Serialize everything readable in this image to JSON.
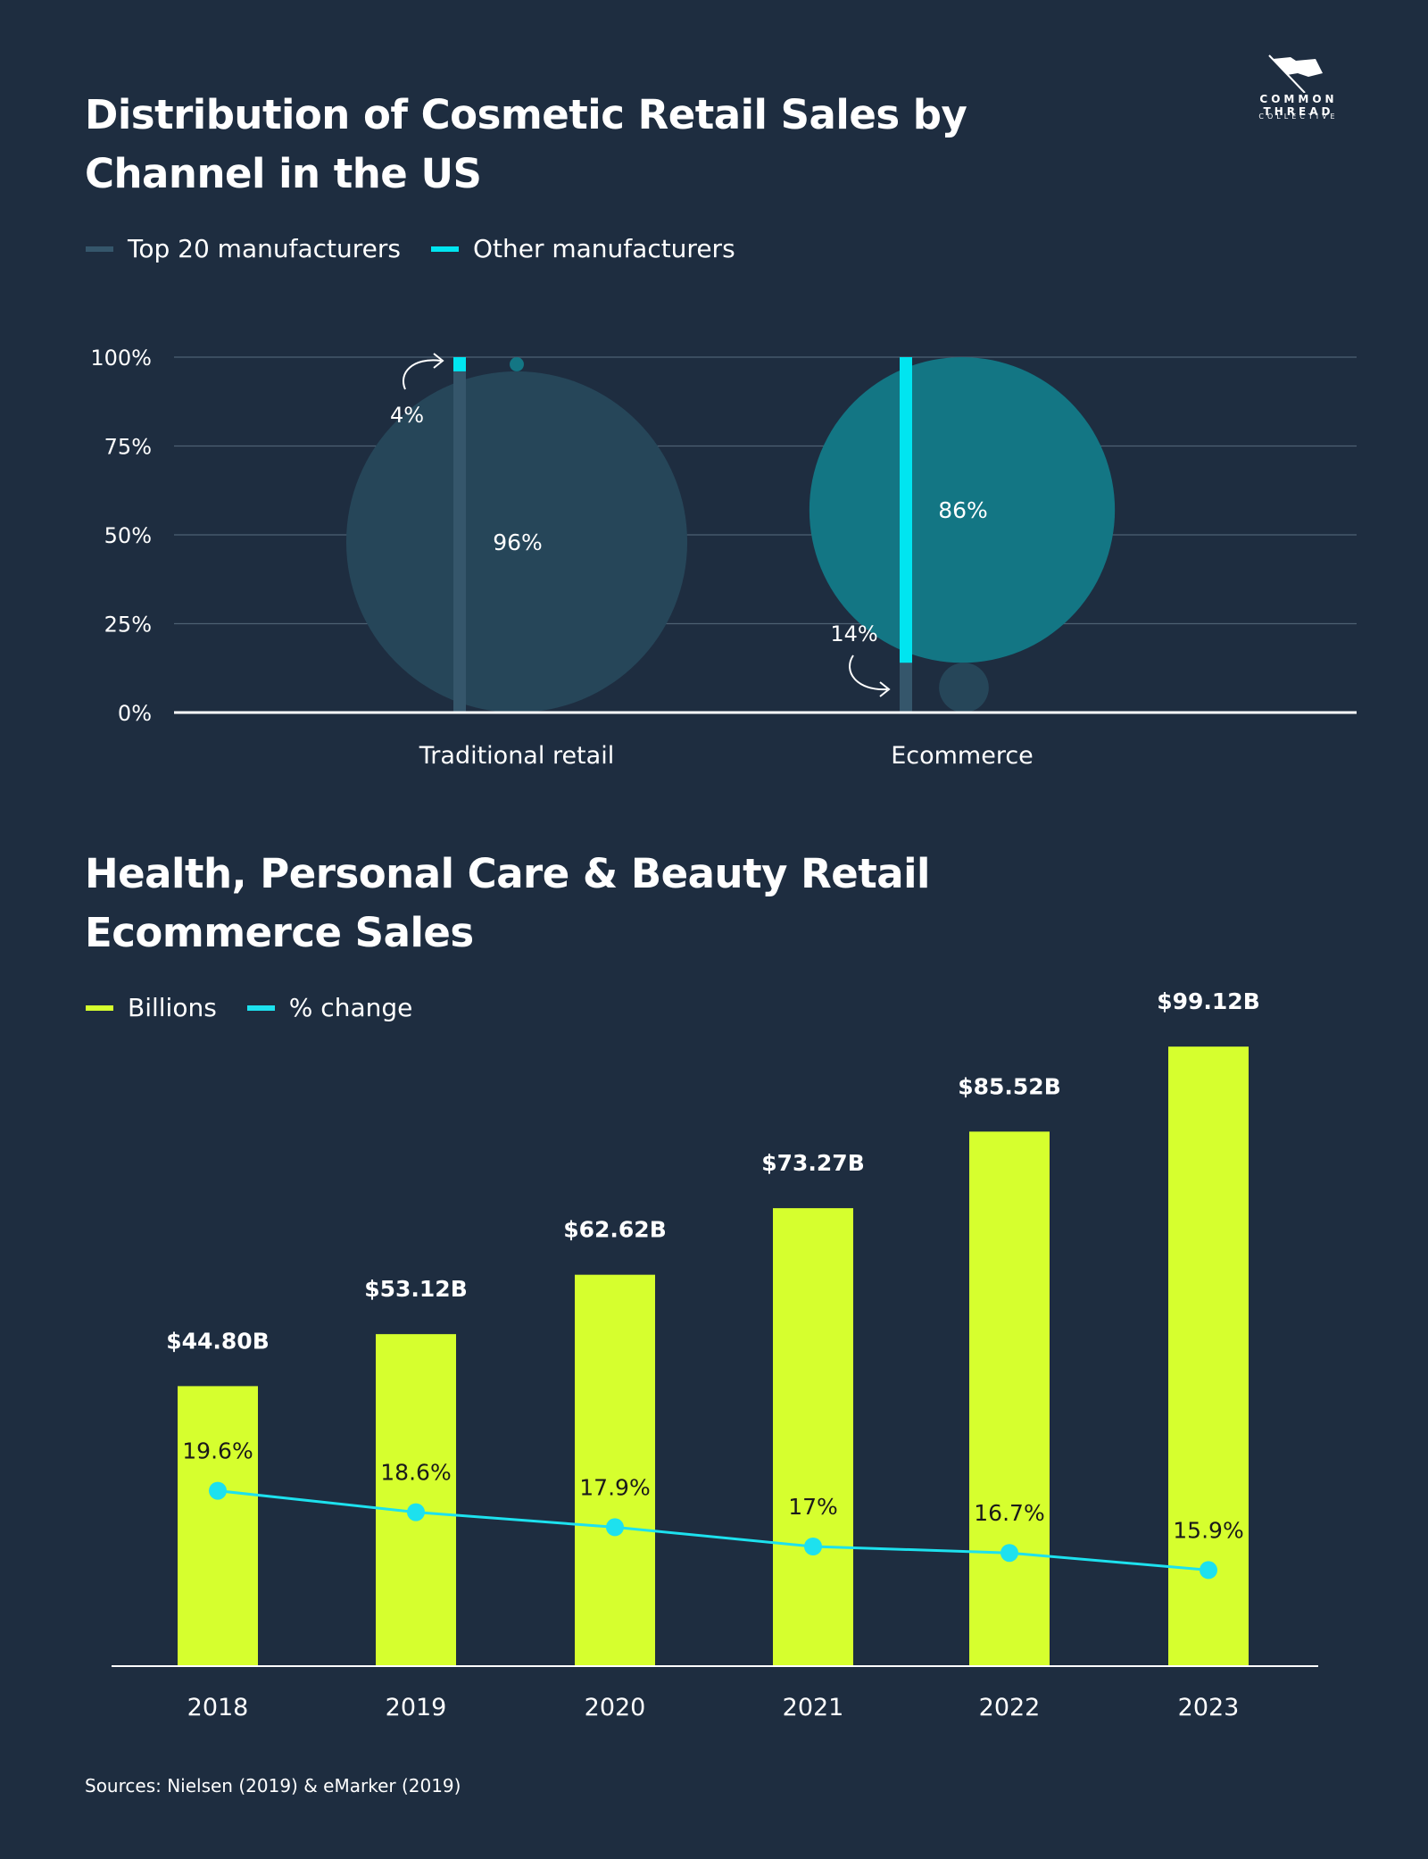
{
  "logo": {
    "brand": "COMMON THREAD",
    "sub": "COLLECTIVE",
    "name": "flag-logo"
  },
  "chart_data": [
    {
      "type": "bar",
      "title": "Distribution of Cosmetic Retail Sales by Channel in the US",
      "categories": [
        "Traditional retail",
        "Ecommerce"
      ],
      "series": [
        {
          "name": "Top 20 manufacturers",
          "values": [
            96,
            14
          ],
          "labels": [
            "96%",
            "14%"
          ],
          "color": "#35566b"
        },
        {
          "name": "Other manufacturers",
          "values": [
            4,
            86
          ],
          "labels": [
            "4%",
            "86%"
          ],
          "color": "#00e5f0"
        }
      ],
      "yticks": [
        "0%",
        "25%",
        "50%",
        "75%",
        "100%"
      ],
      "ylim": [
        0,
        100
      ],
      "grid": true,
      "legend": "top-left",
      "bubble_colors": {
        "top20": "#264659",
        "other": "#137684"
      }
    },
    {
      "type": "bar",
      "title": "Health, Personal Care & Beauty Retail Ecommerce Sales",
      "categories": [
        "2018",
        "2019",
        "2020",
        "2021",
        "2022",
        "2023"
      ],
      "series": [
        {
          "name": "Billions",
          "values": [
            44.8,
            53.12,
            62.62,
            73.27,
            85.52,
            99.12
          ],
          "labels": [
            "$44.80B",
            "$53.12B",
            "$62.62B",
            "$73.27B",
            "$85.52B",
            "$99.12B"
          ],
          "color": "#d6ff2e"
        },
        {
          "name": "% change",
          "type": "line",
          "values": [
            19.6,
            18.6,
            17.9,
            17,
            16.7,
            15.9
          ],
          "labels": [
            "19.6%",
            "18.6%",
            "17.9%",
            "17%",
            "16.7%",
            "15.9%"
          ],
          "color": "#1de1ee"
        }
      ],
      "ylim": [
        0,
        100
      ],
      "legend": "top-left"
    }
  ],
  "source": "Sources: Nielsen (2019) & eMarker (2019)"
}
